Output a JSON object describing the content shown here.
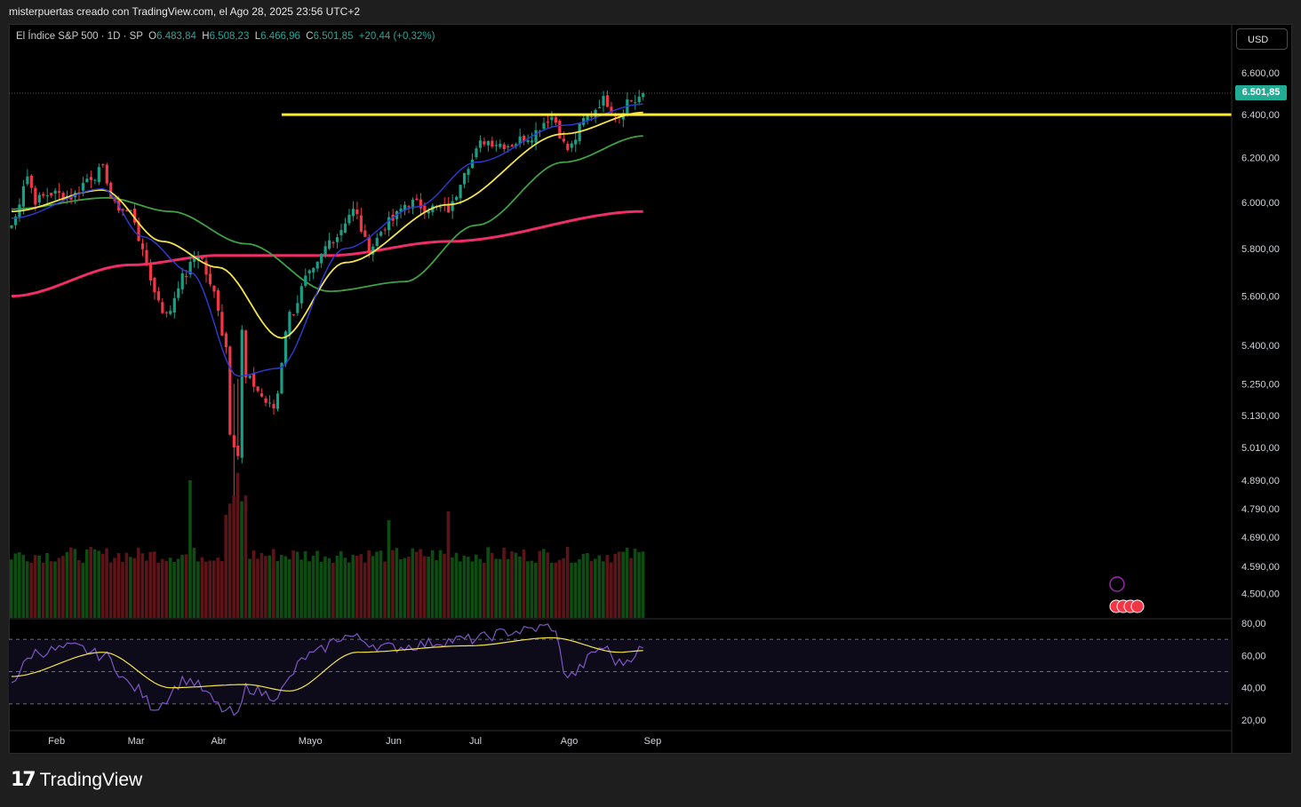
{
  "header": {
    "text": "misterpuertas creado con TradingView.com, el Ago 28, 2025 23:56 UTC+2"
  },
  "legend": {
    "symbol": "El Índice S&P 500 · 1D · SP",
    "open_label": "O",
    "open": "6.483,84",
    "high_label": "H",
    "high": "6.508,23",
    "low_label": "L",
    "low": "6.466,96",
    "close_label": "C",
    "close": "6.501,85",
    "change": "+20,44 (+0,32%)"
  },
  "currency_button": "USD",
  "last_price_badge": "6.501,85",
  "footer": {
    "brand": "TradingView"
  },
  "colors": {
    "up": "#1a9e84",
    "down": "#f23645",
    "vol_up": "#0d4d12",
    "vol_down": "#5c1418",
    "ema_fast": "#2f3bd6",
    "ema_mid": "#f4e44b",
    "sma50": "#3fa044",
    "sma200": "#ef2d66",
    "hline": "#ffeb3b",
    "rsi_line": "#7e57c2",
    "rsi_ma": "#f4e44b"
  },
  "chart_data": [
    {
      "type": "candlestick",
      "title": "El Índice S&P 500 · 1D · SP",
      "y_scale": "log",
      "ylim": [
        4450,
        6700
      ],
      "y_ticks": [
        "6.600,00",
        "6.400,00",
        "6.200,00",
        "6.000,00",
        "5.800,00",
        "5.600,00",
        "5.400,00",
        "5.250,00",
        "5.130,00",
        "5.010,00",
        "4.890,00",
        "4.790,00",
        "4.690,00",
        "4.590,00",
        "4.500,00"
      ],
      "x_month_labels": [
        "Feb",
        "Mar",
        "Abr",
        "Mayo",
        "Jun",
        "Jul",
        "Ago",
        "Sep"
      ],
      "horizontal_level": {
        "value": 6400,
        "from": "2025-04-23"
      },
      "close_anchors": [
        [
          "2025-01-17",
          5900
        ],
        [
          "2025-01-23",
          6118
        ],
        [
          "2025-01-27",
          6010
        ],
        [
          "2025-01-31",
          6040
        ],
        [
          "2025-02-07",
          6025
        ],
        [
          "2025-02-14",
          6115
        ],
        [
          "2025-02-19",
          6144
        ],
        [
          "2025-02-24",
          5983
        ],
        [
          "2025-02-28",
          5955
        ],
        [
          "2025-03-06",
          5740
        ],
        [
          "2025-03-10",
          5614
        ],
        [
          "2025-03-13",
          5522
        ],
        [
          "2025-03-19",
          5675
        ],
        [
          "2025-03-25",
          5776
        ],
        [
          "2025-03-31",
          5612
        ],
        [
          "2025-04-03",
          5396
        ],
        [
          "2025-04-04",
          5074
        ],
        [
          "2025-04-08",
          4982
        ],
        [
          "2025-04-09",
          5456
        ],
        [
          "2025-04-10",
          5268
        ],
        [
          "2025-04-21",
          5158
        ],
        [
          "2025-04-25",
          5525
        ],
        [
          "2025-05-02",
          5686
        ],
        [
          "2025-05-12",
          5844
        ],
        [
          "2025-05-19",
          5963
        ],
        [
          "2025-05-23",
          5803
        ],
        [
          "2025-05-30",
          5912
        ],
        [
          "2025-06-06",
          6000
        ],
        [
          "2025-06-13",
          5977
        ],
        [
          "2025-06-20",
          5968
        ],
        [
          "2025-06-27",
          6173
        ],
        [
          "2025-07-03",
          6279
        ],
        [
          "2025-07-11",
          6260
        ],
        [
          "2025-07-18",
          6297
        ],
        [
          "2025-07-28",
          6390
        ],
        [
          "2025-08-01",
          6238
        ],
        [
          "2025-08-08",
          6389
        ],
        [
          "2025-08-14",
          6469
        ],
        [
          "2025-08-20",
          6396
        ],
        [
          "2025-08-22",
          6467
        ],
        [
          "2025-08-26",
          6465
        ],
        [
          "2025-08-28",
          6501.85
        ]
      ],
      "last_bar": {
        "date": "2025-08-28",
        "open": 6483.84,
        "high": 6508.23,
        "low": 6466.96,
        "close": 6501.85,
        "change": 20.44,
        "change_pct": 0.32
      },
      "ma_anchors": {
        "ema_fast": [
          [
            "2025-01-17",
            5930
          ],
          [
            "2025-02-19",
            6060
          ],
          [
            "2025-03-05",
            5850
          ],
          [
            "2025-03-21",
            5700
          ],
          [
            "2025-04-08",
            5280
          ],
          [
            "2025-04-22",
            5310
          ],
          [
            "2025-05-15",
            5800
          ],
          [
            "2025-06-10",
            5980
          ],
          [
            "2025-07-01",
            6180
          ],
          [
            "2025-07-31",
            6350
          ],
          [
            "2025-08-28",
            6450
          ]
        ],
        "ema_mid": [
          [
            "2025-01-17",
            5960
          ],
          [
            "2025-02-19",
            6055
          ],
          [
            "2025-03-12",
            5830
          ],
          [
            "2025-04-01",
            5720
          ],
          [
            "2025-04-23",
            5430
          ],
          [
            "2025-05-15",
            5740
          ],
          [
            "2025-06-20",
            5990
          ],
          [
            "2025-07-31",
            6310
          ],
          [
            "2025-08-28",
            6410
          ]
        ],
        "sma50": [
          [
            "2025-01-17",
            5970
          ],
          [
            "2025-02-20",
            6020
          ],
          [
            "2025-03-15",
            5960
          ],
          [
            "2025-04-10",
            5820
          ],
          [
            "2025-05-10",
            5620
          ],
          [
            "2025-06-05",
            5660
          ],
          [
            "2025-07-01",
            5900
          ],
          [
            "2025-07-31",
            6180
          ],
          [
            "2025-08-28",
            6300
          ]
        ],
        "sma200": [
          [
            "2025-01-17",
            5600
          ],
          [
            "2025-03-01",
            5730
          ],
          [
            "2025-04-01",
            5770
          ],
          [
            "2025-05-10",
            5770
          ],
          [
            "2025-06-20",
            5830
          ],
          [
            "2025-08-28",
            5960
          ]
        ]
      },
      "volume": {
        "relative": true,
        "note": "spikes on Mar 21 and Apr 7-9"
      }
    },
    {
      "type": "line",
      "title": "",
      "ylim": [
        20,
        85
      ],
      "y_ticks": [
        "80,00",
        "60,00",
        "40,00",
        "20,00"
      ],
      "bands": [
        30,
        50,
        70
      ],
      "series": [
        {
          "values_anchor": [
            [
              "2025-01-17",
              45
            ],
            [
              "2025-01-27",
              62
            ],
            [
              "2025-02-10",
              65
            ],
            [
              "2025-02-19",
              60
            ],
            [
              "2025-03-03",
              40
            ],
            [
              "2025-03-10",
              28
            ],
            [
              "2025-03-20",
              45
            ],
            [
              "2025-04-04",
              25
            ],
            [
              "2025-04-08",
              22
            ],
            [
              "2025-04-10",
              40
            ],
            [
              "2025-04-21",
              35
            ],
            [
              "2025-05-02",
              60
            ],
            [
              "2025-05-15",
              72
            ],
            [
              "2025-06-01",
              65
            ],
            [
              "2025-06-27",
              70
            ],
            [
              "2025-07-15",
              75
            ],
            [
              "2025-07-28",
              78
            ],
            [
              "2025-08-01",
              47
            ],
            [
              "2025-08-14",
              65
            ],
            [
              "2025-08-20",
              55
            ],
            [
              "2025-08-28",
              64
            ]
          ]
        },
        {
          "values_anchor": [
            [
              "2025-01-17",
              47
            ],
            [
              "2025-02-19",
              62
            ],
            [
              "2025-03-15",
              40
            ],
            [
              "2025-04-10",
              42
            ],
            [
              "2025-04-25",
              38
            ],
            [
              "2025-05-20",
              62
            ],
            [
              "2025-06-27",
              66
            ],
            [
              "2025-07-28",
              71
            ],
            [
              "2025-08-20",
              62
            ],
            [
              "2025-08-28",
              63
            ]
          ]
        }
      ]
    }
  ]
}
